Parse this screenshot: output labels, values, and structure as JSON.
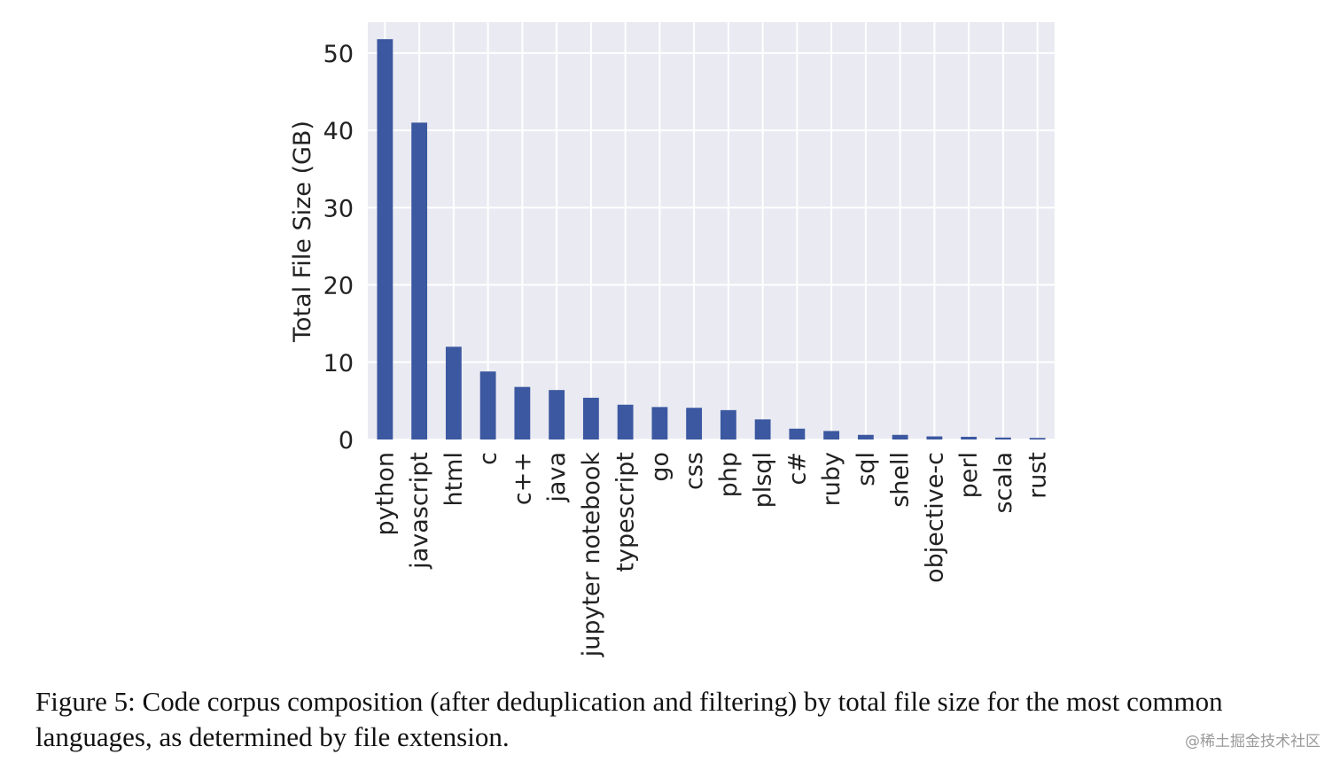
{
  "chart_data": {
    "type": "bar",
    "title": "",
    "xlabel": "",
    "ylabel": "Total File Size (GB)",
    "ylim": [
      0,
      54
    ],
    "yticks": [
      0,
      10,
      20,
      30,
      40,
      50
    ],
    "grid": true,
    "categories": [
      "python",
      "javascript",
      "html",
      "c",
      "c++",
      "java",
      "jupyter notebook",
      "typescript",
      "go",
      "css",
      "php",
      "plsql",
      "c#",
      "ruby",
      "sql",
      "shell",
      "objective-c",
      "perl",
      "scala",
      "rust"
    ],
    "values": [
      51.8,
      41.0,
      12.0,
      8.8,
      6.8,
      6.4,
      5.4,
      4.5,
      4.2,
      4.1,
      3.8,
      2.6,
      1.4,
      1.1,
      0.6,
      0.6,
      0.4,
      0.35,
      0.25,
      0.2
    ],
    "colors": {
      "bar": "#3b58a0",
      "plot_bg": "#eaeaf2",
      "grid": "#ffffff"
    }
  },
  "caption": "Figure 5: Code corpus composition (after deduplication and filtering) by total file size for the most common languages, as determined by file extension.",
  "watermark": "@稀土掘金技术社区"
}
